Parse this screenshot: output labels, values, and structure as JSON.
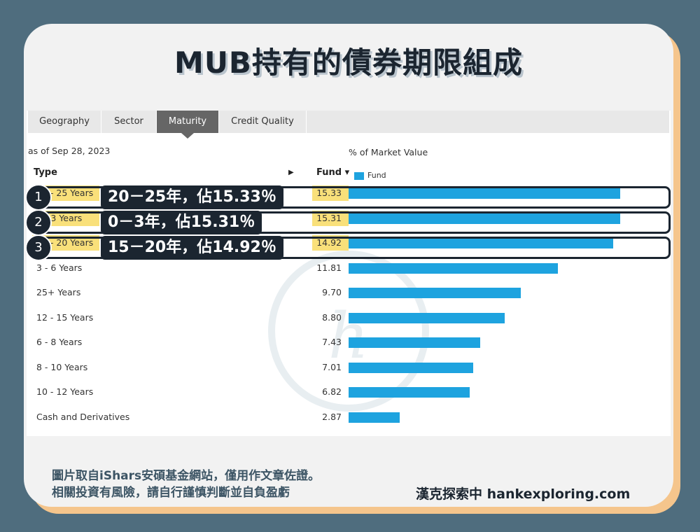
{
  "title": "MUB持有的債券期限組成",
  "tabs": [
    {
      "label": "Geography"
    },
    {
      "label": "Sector"
    },
    {
      "label": "Maturity"
    },
    {
      "label": "Credit Quality"
    }
  ],
  "active_tab": "Maturity",
  "as_of": "as of Sep 28, 2023",
  "market_value_label": "% of Market Value",
  "columns": {
    "type": "Type",
    "fund": "Fund ▾"
  },
  "legend": {
    "label": "Fund",
    "color": "#1ea3df"
  },
  "chart_data": {
    "type": "bar",
    "orientation": "horizontal",
    "categories": [
      "20 - 25 Years",
      "0 - 3 Years",
      "15 - 20 Years",
      "3 - 6 Years",
      "25+ Years",
      "12 - 15 Years",
      "6 - 8 Years",
      "8 - 10 Years",
      "10 - 12 Years",
      "Cash and Derivatives"
    ],
    "series": [
      {
        "name": "Fund",
        "values": [
          15.33,
          15.31,
          14.92,
          11.81,
          9.7,
          8.8,
          7.43,
          7.01,
          6.82,
          2.87
        ]
      }
    ],
    "value_labels": [
      "15.33",
      "15.31",
      "14.92",
      "11.81",
      "9.70",
      "8.80",
      "7.43",
      "7.01",
      "6.82",
      "2.87"
    ],
    "xlim": [
      0,
      16.5
    ],
    "grid": false,
    "legend_position": "top-left",
    "highlighted": [
      0,
      1,
      2
    ],
    "bar_color": "#1ea3df",
    "highlight_color": "#f9e07a"
  },
  "callouts": [
    {
      "num": "1",
      "text": "20－25年，佔15.33％"
    },
    {
      "num": "2",
      "text": "0－3年，佔15.31％"
    },
    {
      "num": "3",
      "text": "15－20年，佔14.92％"
    }
  ],
  "footer": {
    "line1": "圖片取自iShars安碩基金網站，僅用作文章佐證。",
    "line2": "相關投資有風險，請自行謹慎判斷並自負盈虧",
    "brand": "漢克探索中 hankexploring.com"
  }
}
